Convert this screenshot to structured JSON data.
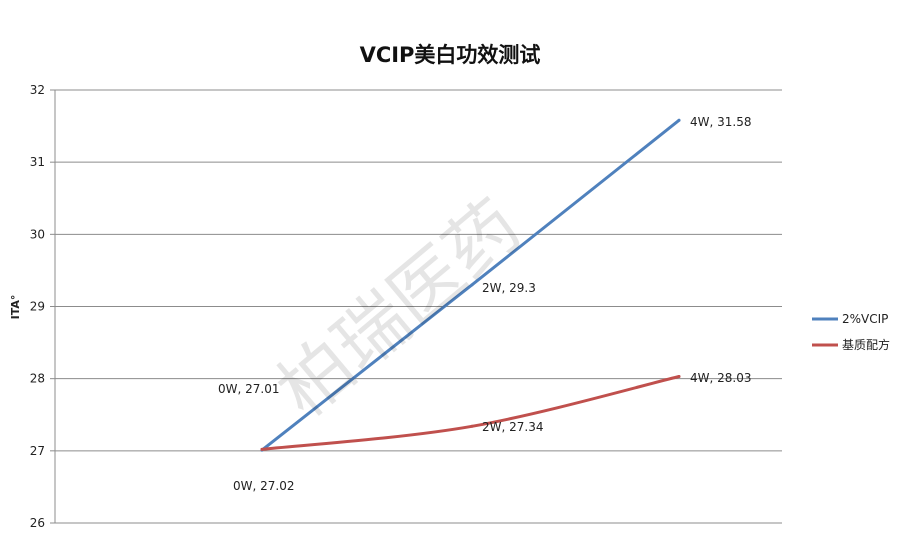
{
  "chart_data": {
    "type": "line",
    "title": "VCIP美白功效测试",
    "ylabel": "ITA°",
    "xlabel": "",
    "categories": [
      "0W",
      "2W",
      "4W"
    ],
    "ylim": [
      26,
      32
    ],
    "yticks": [
      26,
      27,
      28,
      29,
      30,
      31,
      32
    ],
    "grid": true,
    "legend_position": "right",
    "series": [
      {
        "name": "2%VCIP",
        "color": "#4f81bd",
        "values": [
          27.01,
          29.3,
          31.58
        ],
        "labels": [
          "0W, 27.01",
          "2W, 29.3",
          "4W, 31.58"
        ],
        "smooth": false
      },
      {
        "name": "基质配方",
        "color": "#c0504d",
        "values": [
          27.02,
          27.34,
          28.03
        ],
        "labels": [
          "0W, 27.02",
          "2W, 27.34",
          "4W, 28.03"
        ],
        "smooth": true
      }
    ],
    "watermark": "柏瑞医药"
  }
}
